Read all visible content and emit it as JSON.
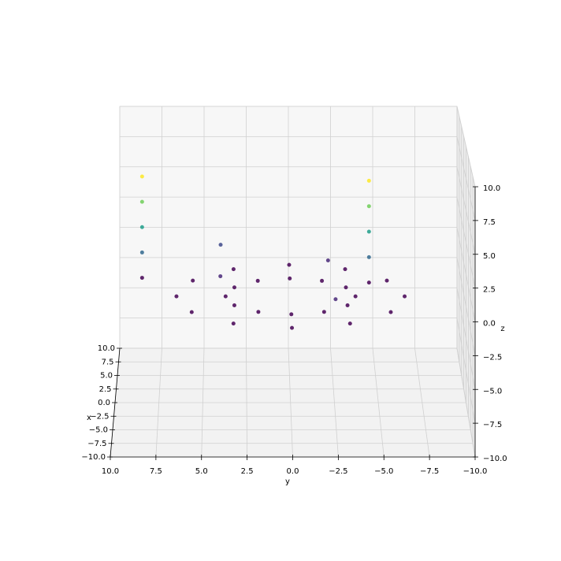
{
  "chart_data": {
    "type": "scatter3d",
    "colormap": "viridis",
    "xlabel": "x",
    "ylabel": "y",
    "zlabel": "z",
    "xlim": [
      -10,
      10
    ],
    "ylim": [
      10,
      -10
    ],
    "zlim": [
      -10,
      10
    ],
    "xticks": [
      {
        "value": -10,
        "label": "−10.0"
      },
      {
        "value": -7.5,
        "label": "−7.5"
      },
      {
        "value": -5,
        "label": "−5.0"
      },
      {
        "value": -2.5,
        "label": "−2.5"
      },
      {
        "value": 0,
        "label": "0.0"
      },
      {
        "value": 2.5,
        "label": "2.5"
      },
      {
        "value": 5,
        "label": "5.0"
      },
      {
        "value": 7.5,
        "label": "7.5"
      },
      {
        "value": 10,
        "label": "10.0"
      }
    ],
    "yticks": [
      {
        "value": 10,
        "label": "10.0"
      },
      {
        "value": 7.5,
        "label": "7.5"
      },
      {
        "value": 5,
        "label": "5.0"
      },
      {
        "value": 2.5,
        "label": "2.5"
      },
      {
        "value": 0,
        "label": "0.0"
      },
      {
        "value": -2.5,
        "label": "−2.5"
      },
      {
        "value": -5,
        "label": "−5.0"
      },
      {
        "value": -7.5,
        "label": "−7.5"
      },
      {
        "value": -10,
        "label": "−10.0"
      }
    ],
    "zticks": [
      {
        "value": -10,
        "label": "−10.0"
      },
      {
        "value": -7.5,
        "label": "−7.5"
      },
      {
        "value": -5,
        "label": "−5.0"
      },
      {
        "value": -2.5,
        "label": "−2.5"
      },
      {
        "value": 0,
        "label": "0.0"
      },
      {
        "value": 2.5,
        "label": "2.5"
      },
      {
        "value": 5,
        "label": "5.0"
      },
      {
        "value": 7.5,
        "label": "7.5"
      },
      {
        "value": 10,
        "label": "10.0"
      }
    ],
    "grid": true,
    "points": {
      "x": [
        3.7,
        3.2,
        1.85,
        0,
        -1.85,
        -3.2,
        -3.7,
        -3.2,
        -1.85,
        0,
        1.85,
        3.2,
        6.5,
        5.6,
        3.25,
        0,
        -3.25,
        -5.6,
        -6.5,
        -5.6,
        -3.25,
        0,
        3.25,
        5.6,
        2,
        2,
        2,
        2,
        2,
        1,
        1,
        1,
        1,
        1,
        -3,
        3,
        1,
        5
      ],
      "y": [
        0,
        1.85,
        3.2,
        3.7,
        3.2,
        1.85,
        0,
        -1.85,
        -3.2,
        -3.7,
        -3.2,
        -1.85,
        0,
        3.25,
        5.6,
        6.5,
        5.6,
        3.25,
        0,
        -3.25,
        -5.6,
        -6.5,
        -5.6,
        -3.25,
        8.5,
        8.5,
        8.5,
        8.5,
        8.5,
        -4.5,
        -4.5,
        -4.5,
        -4.5,
        -4.5,
        -2.5,
        -2.2,
        4,
        4
      ],
      "z": [
        -1.7,
        -1.7,
        -1.7,
        -1.7,
        -1.7,
        -1.7,
        -1.7,
        -1.7,
        -1.7,
        -1.7,
        -1.7,
        -1.7,
        -1.7,
        -1.7,
        -1.7,
        -1.7,
        -1.7,
        -1.7,
        -1.7,
        -1.7,
        -1.7,
        -1.7,
        -1.7,
        -1.7,
        -1,
        1,
        3,
        5,
        7,
        -1,
        1,
        3,
        5,
        7,
        -0.8,
        0,
        -0.5,
        0.5
      ]
    }
  }
}
